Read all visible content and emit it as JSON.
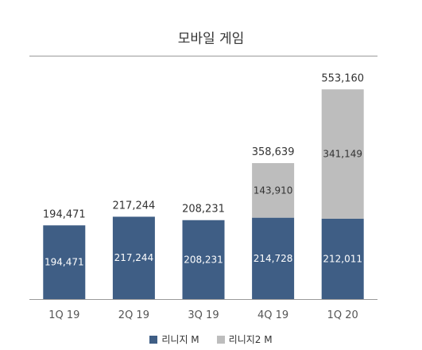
{
  "chart_data": {
    "type": "bar",
    "stacked": true,
    "title": "모바일 게임",
    "categories": [
      "1Q 19",
      "2Q 19",
      "3Q 19",
      "4Q 19",
      "1Q 20"
    ],
    "series": [
      {
        "name": "리니지 M",
        "color": "#3f5e85",
        "values": [
          194471,
          217244,
          208231,
          214728,
          212011
        ],
        "labels": [
          "194,471",
          "217,244",
          "208,231",
          "214,728",
          "212,011"
        ]
      },
      {
        "name": "리니지2 M",
        "color": "#bdbdbd",
        "values": [
          0,
          0,
          0,
          143910,
          341149
        ],
        "labels": [
          "",
          "",
          "",
          "143,910",
          "341,149"
        ]
      }
    ],
    "totals": [
      194471,
      217244,
      208231,
      358639,
      553160
    ],
    "total_labels": [
      "194,471",
      "217,244",
      "208,231",
      "358,639",
      "553,160"
    ],
    "ylim": [
      0,
      600000
    ],
    "legend_position": "bottom",
    "grid": false
  }
}
